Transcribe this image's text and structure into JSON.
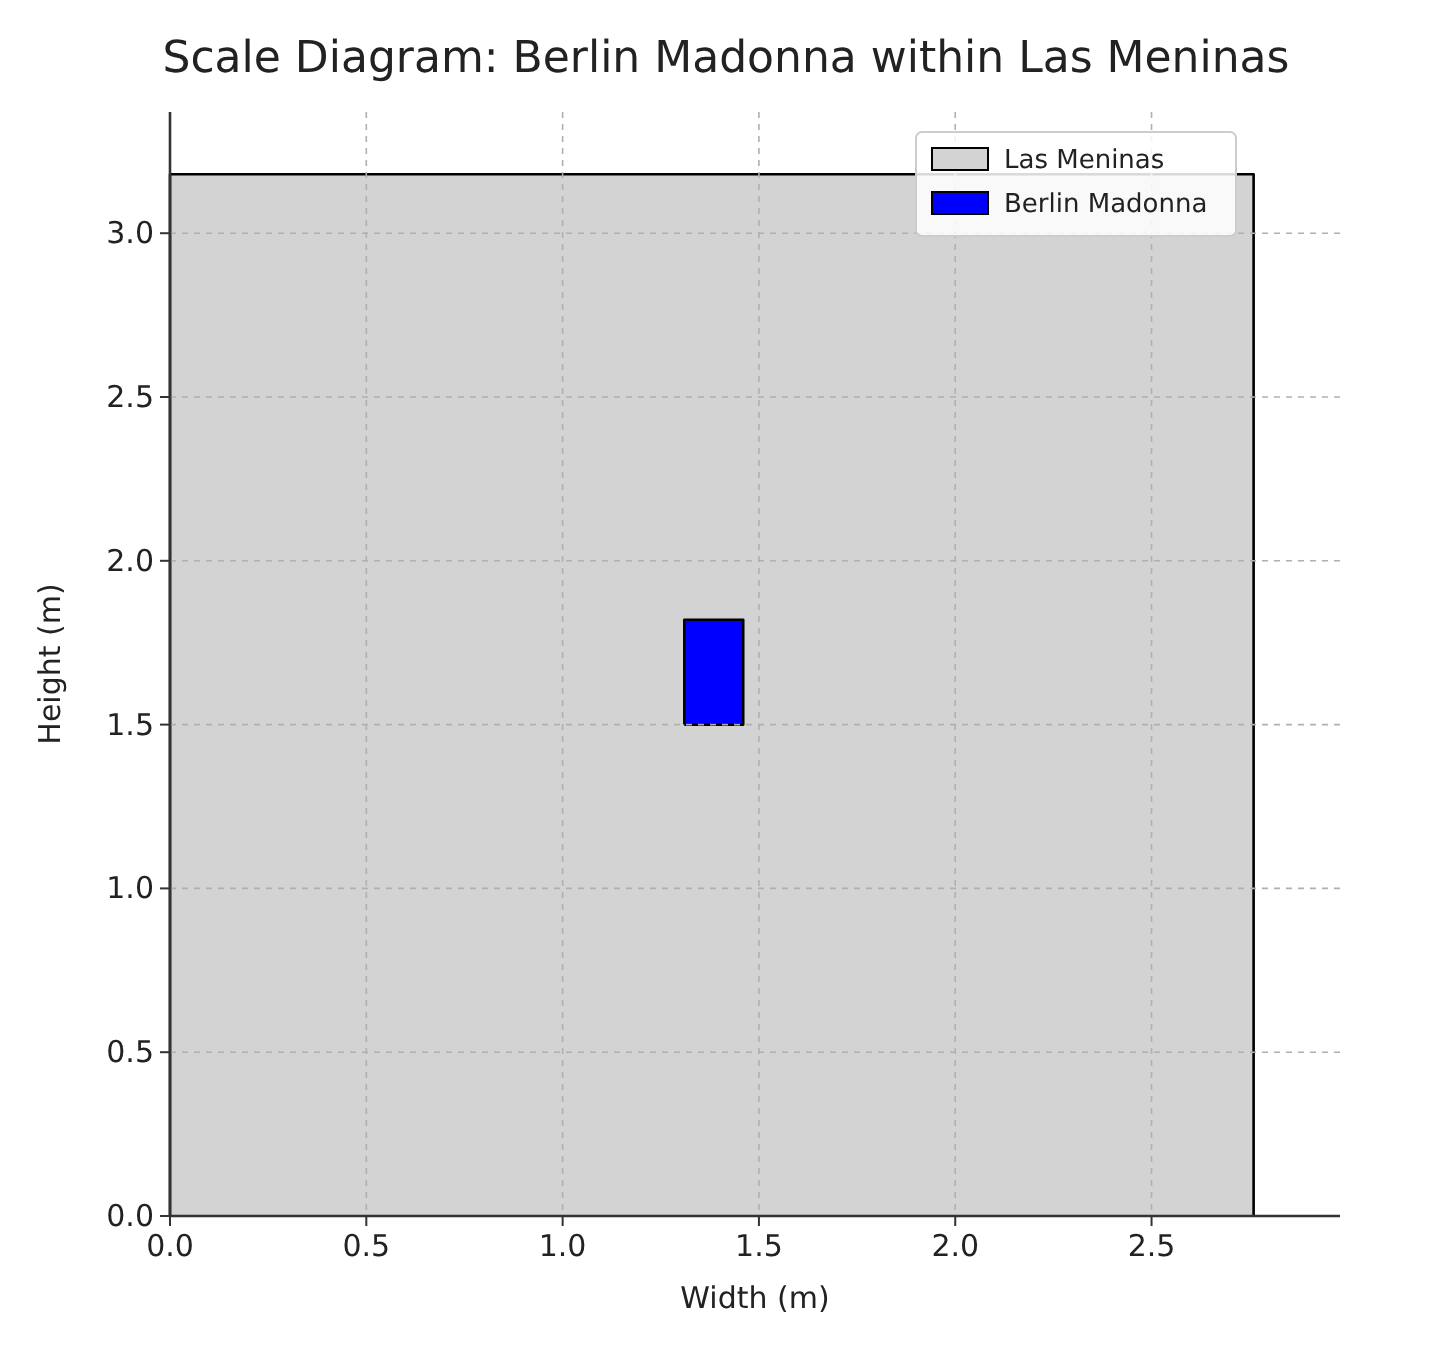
{
  "chart_data": {
    "type": "area",
    "title": "Scale Diagram: Berlin Madonna within Las Meninas",
    "xlabel": "Width (m)",
    "ylabel": "Height (m)",
    "series": [
      {
        "name": "Las Meninas",
        "color": "#d3d3d3",
        "x": [
          0,
          0,
          2.76,
          2.76
        ],
        "values": [
          0,
          3.18,
          3.18,
          0
        ]
      },
      {
        "name": "Berlin Madonna",
        "color": "#0000ff",
        "x": [
          1.31,
          1.31,
          1.46,
          1.46,
          1.31
        ],
        "values": [
          1.5,
          1.82,
          1.82,
          1.5,
          1.5
        ]
      }
    ],
    "xlim": [
      0,
      2.98
    ],
    "ylim": [
      0,
      3.37
    ],
    "xticks": [
      {
        "value": 0,
        "label": "0.0"
      },
      0.5,
      {
        "value": 1,
        "label": "1.0"
      },
      1.5,
      {
        "value": 2,
        "label": "2.0"
      },
      2.5
    ],
    "yticks": [
      {
        "value": 0,
        "label": "0.0"
      },
      0.5,
      {
        "value": 1,
        "label": "1.0"
      },
      1.5,
      {
        "value": 2,
        "label": "2.0"
      },
      2.5,
      {
        "value": 3,
        "label": "3.0"
      }
    ],
    "grid": true,
    "legend": "top right"
  }
}
